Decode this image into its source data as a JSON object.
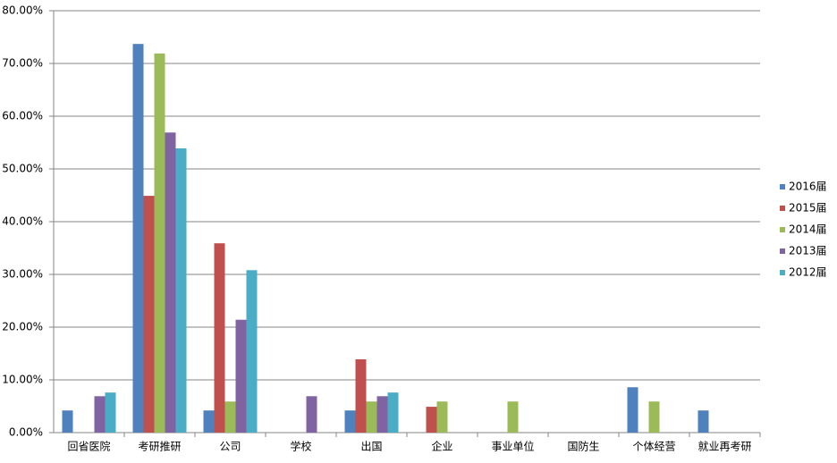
{
  "chart_data": {
    "type": "bar",
    "categories": [
      "回省医院",
      "考研推研",
      "公司",
      "学校",
      "出国",
      "企业",
      "事业单位",
      "国防生",
      "个体经营",
      "就业再考研"
    ],
    "series": [
      {
        "name": "2016届",
        "color": "#4f81bd",
        "values": [
          4.2,
          73.7,
          4.2,
          0,
          4.2,
          0,
          0,
          0,
          8.6,
          4.2
        ]
      },
      {
        "name": "2015届",
        "color": "#c0504d",
        "values": [
          0,
          44.9,
          35.9,
          0,
          13.9,
          4.9,
          0,
          0,
          0,
          0
        ]
      },
      {
        "name": "2014届",
        "color": "#9bbb59",
        "values": [
          0,
          71.9,
          5.9,
          0,
          5.9,
          5.9,
          5.9,
          0,
          5.9,
          0
        ]
      },
      {
        "name": "2013届",
        "color": "#8064a2",
        "values": [
          6.9,
          56.9,
          21.4,
          6.9,
          6.9,
          0,
          0,
          0,
          0,
          0
        ]
      },
      {
        "name": "2012届",
        "color": "#4bacc6",
        "values": [
          7.6,
          53.9,
          30.8,
          0,
          7.6,
          0,
          0,
          0,
          0,
          0
        ]
      }
    ],
    "ylim": [
      0,
      80
    ],
    "yticks": [
      {
        "value": 0,
        "label": "0.00%"
      },
      {
        "value": 10,
        "label": "10.00%"
      },
      {
        "value": 20,
        "label": "20.00%"
      },
      {
        "value": 30,
        "label": "30.00%"
      },
      {
        "value": 40,
        "label": "40.00%"
      },
      {
        "value": 50,
        "label": "50.00%"
      },
      {
        "value": 60,
        "label": "60.00%"
      },
      {
        "value": 70,
        "label": "70.00%"
      },
      {
        "value": 80,
        "label": "80.00%"
      }
    ],
    "grid": true,
    "legend": "right"
  }
}
